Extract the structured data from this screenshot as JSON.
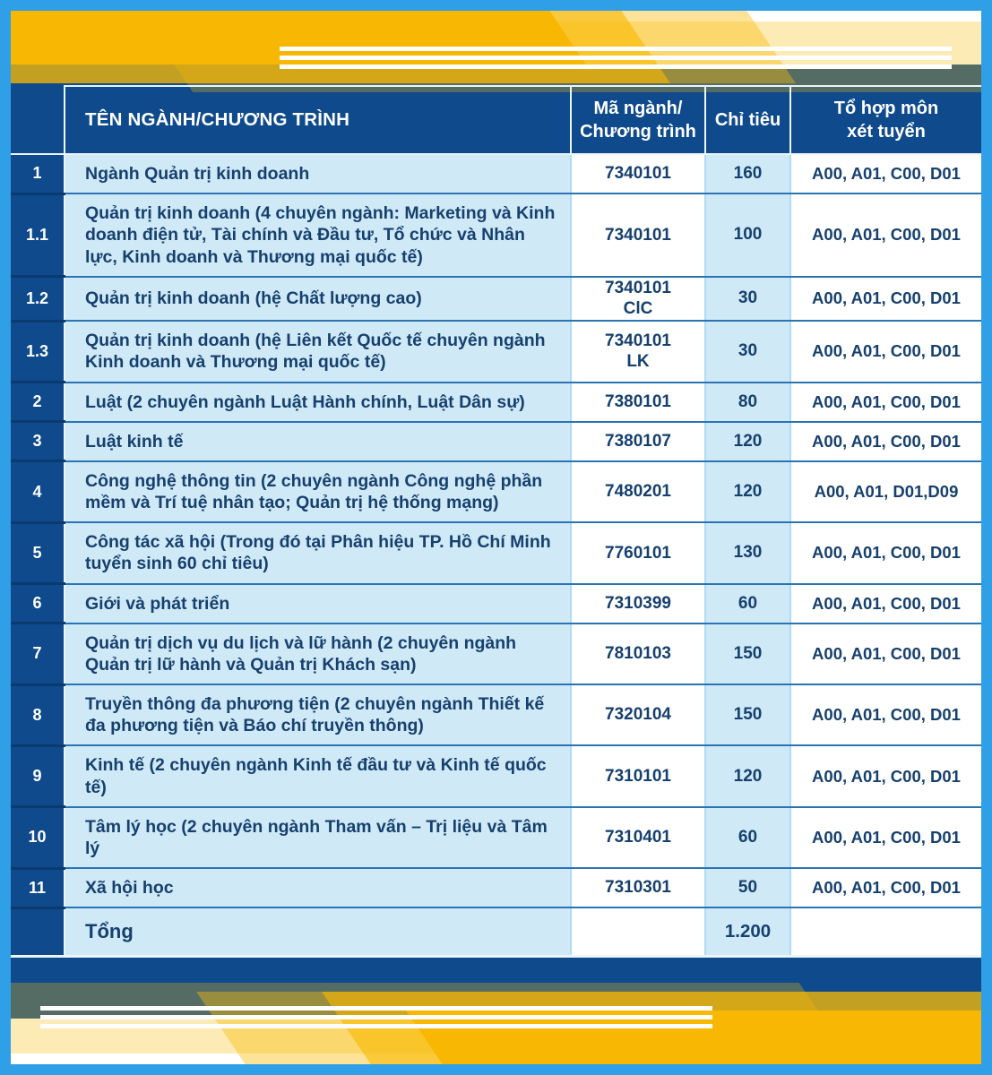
{
  "header": {
    "name": "TÊN NGÀNH/CHƯƠNG TRÌNH",
    "code_line1": "Mã ngành/",
    "code_line2": "Chương trình",
    "quota": "Chỉ tiêu",
    "combo_line1": "Tổ hợp môn",
    "combo_line2": "xét tuyển"
  },
  "rows": [
    {
      "no": "1",
      "name": "Ngành Quản trị kinh doanh",
      "code": "7340101",
      "code2": "",
      "quota": "160",
      "combo": "A00, A01, C00, D01"
    },
    {
      "no": "1.1",
      "name": "Quản trị kinh doanh (4 chuyên ngành: Marketing và Kinh doanh điện tử, Tài chính và Đầu tư, Tổ chức và Nhân lực, Kinh doanh và Thương mại quốc tế)",
      "code": "7340101",
      "code2": "",
      "quota": "100",
      "combo": "A00, A01, C00, D01"
    },
    {
      "no": "1.2",
      "name": "Quản trị kinh doanh (hệ Chất lượng cao)",
      "code": "7340101",
      "code2": "ClC",
      "quota": "30",
      "combo": "A00, A01, C00, D01"
    },
    {
      "no": "1.3",
      "name": "Quản trị kinh doanh (hệ Liên kết Quốc tế chuyên ngành Kinh doanh và Thương mại quốc tế)",
      "code": "7340101",
      "code2": "LK",
      "quota": "30",
      "combo": "A00, A01, C00, D01"
    },
    {
      "no": "2",
      "name": "Luật (2 chuyên ngành Luật Hành chính, Luật Dân sự)",
      "code": "7380101",
      "code2": "",
      "quota": "80",
      "combo": "A00, A01, C00, D01"
    },
    {
      "no": "3",
      "name": "Luật kinh tế",
      "code": "7380107",
      "code2": "",
      "quota": "120",
      "combo": "A00, A01, C00, D01"
    },
    {
      "no": "4",
      "name": "Công nghệ thông tin (2 chuyên ngành Công nghệ phần mềm và Trí tuệ nhân tạo; Quản trị hệ thống mạng)",
      "code": "7480201",
      "code2": "",
      "quota": "120",
      "combo": "A00, A01, D01,D09"
    },
    {
      "no": "5",
      "name": "Công tác xã hội (Trong đó tại Phân hiệu TP. Hồ Chí Minh tuyển sinh 60 chỉ tiêu)",
      "code": "7760101",
      "code2": "",
      "quota": "130",
      "combo": "A00, A01, C00, D01"
    },
    {
      "no": "6",
      "name": "Giới và phát triển",
      "code": "7310399",
      "code2": "",
      "quota": "60",
      "combo": "A00, A01, C00, D01"
    },
    {
      "no": "7",
      "name": "Quản trị dịch vụ du lịch và lữ hành (2 chuyên ngành Quản trị lữ hành và Quản trị Khách sạn)",
      "code": "7810103",
      "code2": "",
      "quota": "150",
      "combo": "A00, A01, C00, D01"
    },
    {
      "no": "8",
      "name": "Truyền thông đa phương tiện (2 chuyên ngành Thiết kế đa phương tiện và Báo chí truyền thông)",
      "code": "7320104",
      "code2": "",
      "quota": "150",
      "combo": "A00, A01, C00, D01"
    },
    {
      "no": "9",
      "name": "Kinh tế (2 chuyên ngành Kinh tế đầu tư và Kinh tế quốc tế)",
      "code": "7310101",
      "code2": "",
      "quota": "120",
      "combo": "A00, A01, C00, D01"
    },
    {
      "no": "10",
      "name": "Tâm lý học (2 chuyên ngành Tham vấn – Trị liệu và Tâm lý",
      "code": "7310401",
      "code2": "",
      "quota": "60",
      "combo": "A00, A01, C00, D01"
    },
    {
      "no": "11",
      "name": "Xã hội học",
      "code": "7310301",
      "code2": "",
      "quota": "50",
      "combo": "A00, A01, C00, D01"
    }
  ],
  "total_row": {
    "label": "Tổng",
    "quota": "1.200"
  },
  "colors": {
    "frame_blue": "#2F9FE7",
    "navy_background": "#0E4A8C",
    "light_blue_cell": "#CFE9F7",
    "white_cell": "#FFFFFF",
    "banner_yellow": "#F8B702",
    "row_divider_blue": "#2B74B3",
    "column_divider_blue": "#AEDCF2",
    "text_navy": "#16406E",
    "header_text": "#FFFFFF"
  }
}
